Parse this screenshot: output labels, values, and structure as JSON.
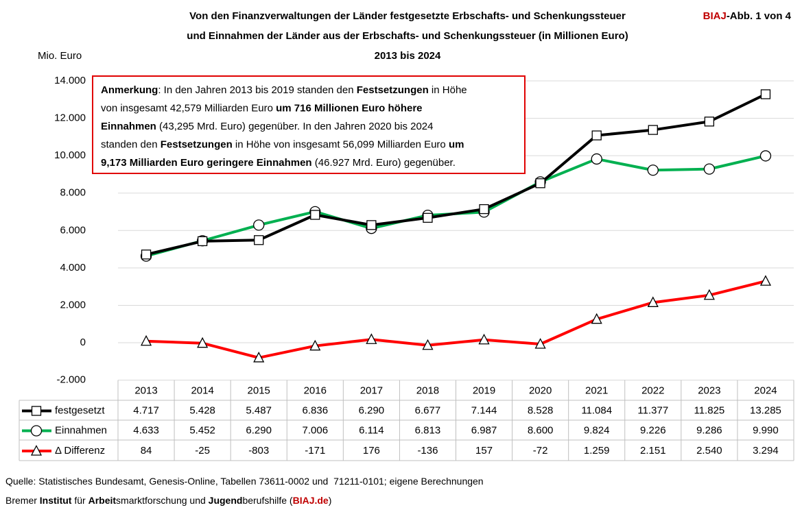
{
  "chart_data": {
    "type": "line",
    "title": [
      "Von den Finanzverwaltungen der Länder festgesetzte Erbschafts- und Schenkungssteuer",
      "und Einnahmen der Länder aus der Erbschafts- und Schenkungssteuer (in Millionen Euro)",
      "2013 bis 2024"
    ],
    "badge": [
      {
        "text": "BIAJ",
        "bold": true,
        "color": "#c00000"
      },
      {
        "text": "-Abb. 1 von 4",
        "bold": true
      }
    ],
    "y_label": "Mio. Euro",
    "categories": [
      "2013",
      "2014",
      "2015",
      "2016",
      "2017",
      "2018",
      "2019",
      "2020",
      "2021",
      "2022",
      "2023",
      "2024"
    ],
    "series": [
      {
        "name": "festgesetzt",
        "color": "#000000",
        "marker": "square",
        "values": [
          4717,
          5428,
          5487,
          6836,
          6290,
          6677,
          7144,
          8528,
          11084,
          11377,
          11825,
          13285
        ],
        "value_labels": [
          "4.717",
          "5.428",
          "5.487",
          "6.836",
          "6.290",
          "6.677",
          "7.144",
          "8.528",
          "11.084",
          "11.377",
          "11.825",
          "13.285"
        ]
      },
      {
        "name": "Einnahmen",
        "color": "#00b050",
        "marker": "circle",
        "values": [
          4633,
          5452,
          6290,
          7006,
          6114,
          6813,
          6987,
          8600,
          9824,
          9226,
          9286,
          9990
        ],
        "value_labels": [
          "4.633",
          "5.452",
          "6.290",
          "7.006",
          "6.114",
          "6.813",
          "6.987",
          "8.600",
          "9.824",
          "9.226",
          "9.286",
          "9.990"
        ]
      },
      {
        "name": "Δ Differenz",
        "color": "#ff0000",
        "marker": "triangle",
        "values": [
          84,
          -25,
          -803,
          -171,
          176,
          -136,
          157,
          -72,
          1259,
          2151,
          2540,
          3294
        ],
        "value_labels": [
          "84",
          "-25",
          "-803",
          "-171",
          "176",
          "-136",
          "157",
          "-72",
          "1.259",
          "2.151",
          "2.540",
          "3.294"
        ]
      }
    ],
    "ylim": [
      -2000,
      14000
    ],
    "yticks": [
      {
        "value": -2000,
        "label": "-2.000"
      },
      0,
      {
        "value": 2000,
        "label": "2.000"
      },
      {
        "value": 4000,
        "label": "4.000"
      },
      {
        "value": 6000,
        "label": "6.000"
      },
      {
        "value": 8000,
        "label": "8.000"
      },
      {
        "value": 10000,
        "label": "10.000"
      },
      {
        "value": 12000,
        "label": "12.000"
      },
      {
        "value": 14000,
        "label": "14.000"
      }
    ],
    "grid": true,
    "annotation": [
      [
        {
          "text": "Anmerkung",
          "bold": true
        },
        {
          "text": ": In den Jahren 2013 bis 2019 standen den "
        },
        {
          "text": "Festsetzungen",
          "bold": true
        },
        {
          "text": " in Höhe"
        }
      ],
      [
        {
          "text": "von insgesamt 42,579 Milliarden Euro "
        },
        {
          "text": "um 716 Millionen Euro höhere",
          "bold": true
        }
      ],
      [
        {
          "text": "Einnahmen",
          "bold": true
        },
        {
          "text": " (43,295 Mrd. Euro) gegenüber. In den Jahren 2020 bis 2024"
        }
      ],
      [
        {
          "text": "standen den "
        },
        {
          "text": "Festsetzungen",
          "bold": true
        },
        {
          "text": " in Höhe von insgesamt 56,099 Milliarden Euro "
        },
        {
          "text": "um",
          "bold": true
        }
      ],
      [
        {
          "text": "9,173 Milliarden Euro geringere Einnahmen",
          "bold": true
        },
        {
          "text": " (46.927 Mrd. Euro) gegenüber."
        }
      ]
    ],
    "source": [
      [
        {
          "text": "Quelle: Statistisches Bundesamt, Genesis-Online, Tabellen 73611-0002 und  71211-0101; eigene Berechnungen"
        }
      ],
      [
        {
          "text": "Bremer "
        },
        {
          "text": "Institut",
          "bold": true
        },
        {
          "text": " für "
        },
        {
          "text": "Arbeit",
          "bold": true
        },
        {
          "text": "smarktforschung und "
        },
        {
          "text": "Jugend",
          "bold": true
        },
        {
          "text": "berufshilfe ("
        },
        {
          "text": "BIAJ.de",
          "bold": true,
          "color": "#c00000"
        },
        {
          "text": ")"
        }
      ]
    ]
  }
}
